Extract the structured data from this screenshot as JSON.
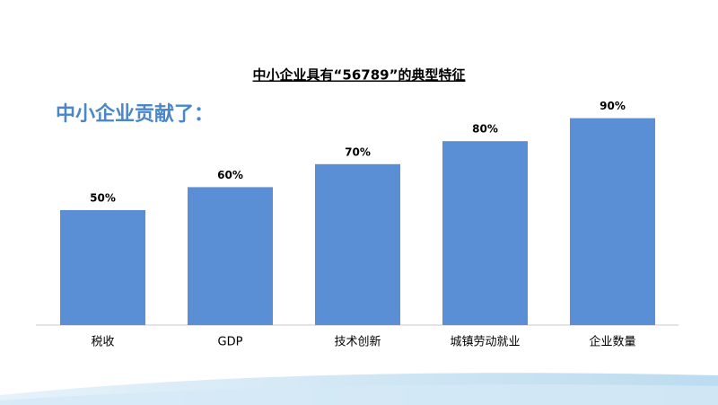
{
  "chart_data": {
    "type": "bar",
    "title": "中小企业具有“56789”的典型特征",
    "subtitle": "中小企业贡献了：",
    "categories": [
      "税收",
      "GDP",
      "技术创新",
      "城镇劳动就业",
      "企业数量"
    ],
    "values": [
      50,
      60,
      70,
      80,
      90
    ],
    "value_labels": [
      "50%",
      "60%",
      "70%",
      "80%",
      "90%"
    ],
    "color": "#5a8fd6"
  }
}
